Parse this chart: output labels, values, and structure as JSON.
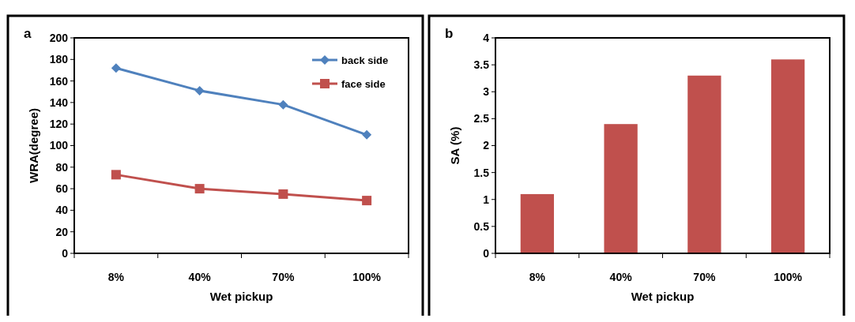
{
  "chart_data": [
    {
      "type": "line",
      "annotations": [
        "a"
      ],
      "xlabel": "Wet pickup",
      "ylabel": "WRA(degree)",
      "categories": [
        "8%",
        "40%",
        "70%",
        "100%"
      ],
      "series": [
        {
          "name": "back side",
          "color": "#4f81bd",
          "marker": "diamond",
          "values": [
            172,
            151,
            138,
            110
          ]
        },
        {
          "name": "face side",
          "color": "#c0504d",
          "marker": "square",
          "values": [
            73,
            60,
            55,
            49
          ]
        }
      ],
      "ylim": [
        0,
        200
      ],
      "yticks": [
        0,
        20,
        40,
        60,
        80,
        100,
        120,
        140,
        160,
        180,
        200
      ],
      "legend": "top right",
      "grid": false
    },
    {
      "type": "bar",
      "annotations": [
        "b"
      ],
      "xlabel": "Wet pickup",
      "ylabel": "SA (%)",
      "categories": [
        "8%",
        "40%",
        "70%",
        "100%"
      ],
      "values": [
        1.1,
        2.4,
        3.3,
        3.6
      ],
      "color": "#c0504d",
      "ylim": [
        0,
        4
      ],
      "yticks": [
        0,
        0.5,
        1,
        1.5,
        2,
        2.5,
        3,
        3.5,
        4
      ],
      "grid": false
    }
  ]
}
